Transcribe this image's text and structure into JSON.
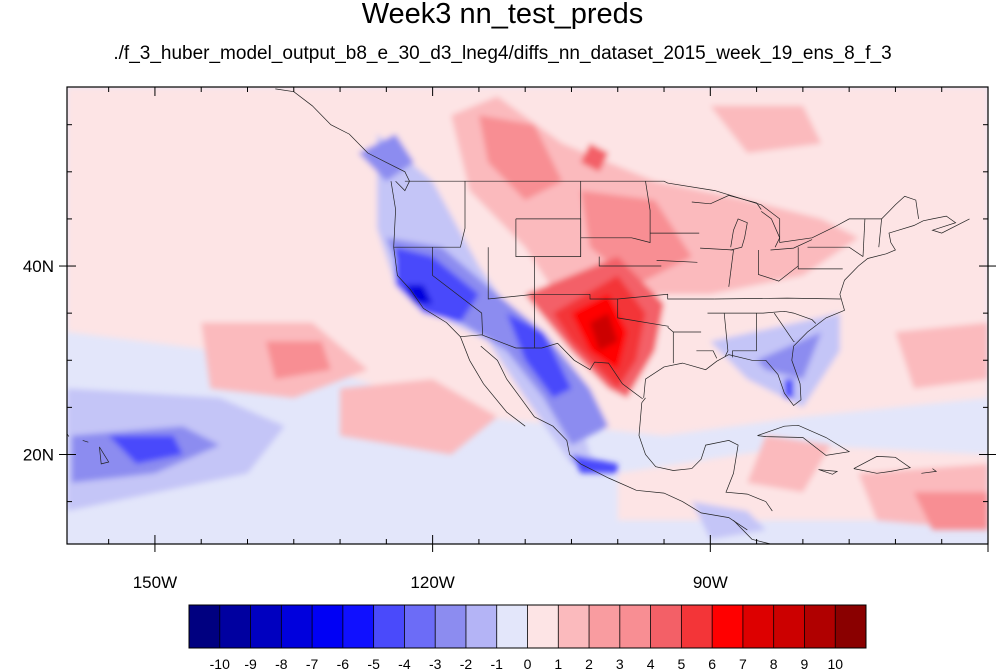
{
  "title": "Week3 nn_test_preds",
  "subtitle": "./f_3_huber_model_output_b8_e_30_d3_lneg4/diffs_nn_dataset_2015_week_19_ens_8_f_3",
  "map": {
    "projection": "cylindrical equidistant",
    "lon_range": [
      -159.5,
      -60
    ],
    "lat_range": [
      10.5,
      59
    ],
    "lon_labels": [
      {
        "lon": -150,
        "text": "150W"
      },
      {
        "lon": -120,
        "text": "120W"
      },
      {
        "lon": -90,
        "text": "90W"
      }
    ],
    "lat_labels": [
      {
        "lat": 40,
        "text": "40N"
      },
      {
        "lat": 20,
        "text": "20N"
      }
    ],
    "background_color": "#e3e6fa",
    "patches": [
      {
        "color": "#fde4e5",
        "pts": [
          [
            -159.5,
            59
          ],
          [
            -60,
            59
          ],
          [
            -60,
            26
          ],
          [
            -80,
            24
          ],
          [
            -95,
            22
          ],
          [
            -115,
            24
          ],
          [
            -135,
            30
          ],
          [
            -159.5,
            33
          ]
        ]
      },
      {
        "color": "#fde4e5",
        "pts": [
          [
            -100,
            13
          ],
          [
            -60,
            13
          ],
          [
            -60,
            20
          ],
          [
            -80,
            21
          ],
          [
            -100,
            18
          ]
        ]
      },
      {
        "color": "#fbbabd",
        "pts": [
          [
            -118,
            56
          ],
          [
            -113,
            58
          ],
          [
            -106,
            53
          ],
          [
            -96,
            49
          ],
          [
            -86,
            47
          ],
          [
            -78,
            45
          ],
          [
            -74,
            43
          ],
          [
            -80,
            39
          ],
          [
            -90,
            37
          ],
          [
            -97,
            37
          ],
          [
            -106,
            36
          ],
          [
            -110,
            42
          ],
          [
            -116,
            48
          ]
        ]
      },
      {
        "color": "#fbbabd",
        "pts": [
          [
            -90,
            57
          ],
          [
            -80,
            57
          ],
          [
            -78,
            53
          ],
          [
            -86,
            52
          ]
        ]
      },
      {
        "color": "#fbbabd",
        "pts": [
          [
            -145,
            34
          ],
          [
            -133,
            34
          ],
          [
            -127,
            29
          ],
          [
            -135,
            26
          ],
          [
            -144,
            27
          ]
        ]
      },
      {
        "color": "#fbbabd",
        "pts": [
          [
            -70,
            33
          ],
          [
            -60,
            34
          ],
          [
            -60,
            28
          ],
          [
            -68,
            27
          ]
        ]
      },
      {
        "color": "#fbbabd",
        "pts": [
          [
            -130,
            27
          ],
          [
            -120,
            28
          ],
          [
            -113,
            24
          ],
          [
            -118,
            20
          ],
          [
            -130,
            22
          ]
        ]
      },
      {
        "color": "#fbbabd",
        "pts": [
          [
            -74,
            18
          ],
          [
            -60,
            19
          ],
          [
            -60,
            12
          ],
          [
            -72,
            13
          ]
        ]
      },
      {
        "color": "#fbbabd",
        "pts": [
          [
            -84,
            22
          ],
          [
            -77,
            21
          ],
          [
            -80,
            16
          ],
          [
            -86,
            17
          ]
        ]
      },
      {
        "color": "#f88e93",
        "pts": [
          [
            -115,
            56
          ],
          [
            -109,
            55
          ],
          [
            -106,
            49
          ],
          [
            -110,
            47
          ],
          [
            -114,
            51
          ]
        ]
      },
      {
        "color": "#f88e93",
        "pts": [
          [
            -104,
            48
          ],
          [
            -96,
            47
          ],
          [
            -92,
            41
          ],
          [
            -98,
            38
          ],
          [
            -103,
            42
          ]
        ]
      },
      {
        "color": "#f88e93",
        "pts": [
          [
            -138,
            32
          ],
          [
            -132,
            32
          ],
          [
            -131,
            29
          ],
          [
            -137,
            28
          ]
        ]
      },
      {
        "color": "#f88e93",
        "pts": [
          [
            -68,
            16
          ],
          [
            -60,
            16
          ],
          [
            -60,
            12
          ],
          [
            -66,
            12
          ]
        ]
      },
      {
        "color": "#f36067",
        "pts": [
          [
            -110,
            37
          ],
          [
            -100,
            41
          ],
          [
            -95,
            36
          ],
          [
            -96,
            31
          ],
          [
            -99,
            26
          ],
          [
            -101,
            27
          ],
          [
            -105,
            31
          ]
        ]
      },
      {
        "color": "#f36067",
        "pts": [
          [
            -103,
            53
          ],
          [
            -101,
            52
          ],
          [
            -102,
            50
          ],
          [
            -104,
            51
          ]
        ]
      },
      {
        "color": "#f33538",
        "pts": [
          [
            -107,
            35
          ],
          [
            -100,
            39
          ],
          [
            -97,
            35
          ],
          [
            -98,
            30
          ],
          [
            -100,
            27
          ],
          [
            -102,
            29
          ],
          [
            -105,
            32
          ]
        ]
      },
      {
        "color": "#ff0000",
        "pts": [
          [
            -105,
            35
          ],
          [
            -101,
            37
          ],
          [
            -99,
            33
          ],
          [
            -100,
            29
          ],
          [
            -103,
            31
          ]
        ]
      },
      {
        "color": "#cc0000",
        "pts": [
          [
            -103,
            34
          ],
          [
            -101,
            35
          ],
          [
            -100,
            32
          ],
          [
            -102,
            31
          ]
        ]
      },
      {
        "color": "#c4c5f7",
        "pts": [
          [
            -159.5,
            27
          ],
          [
            -143,
            26
          ],
          [
            -136,
            23
          ],
          [
            -140,
            18
          ],
          [
            -159.5,
            14
          ]
        ]
      },
      {
        "color": "#c4c5f7",
        "pts": [
          [
            -126,
            54
          ],
          [
            -120,
            49
          ],
          [
            -115,
            40
          ],
          [
            -110,
            33
          ],
          [
            -105,
            27
          ],
          [
            -103,
            20
          ],
          [
            -100,
            18
          ],
          [
            -105,
            19
          ],
          [
            -110,
            26
          ],
          [
            -114,
            32
          ],
          [
            -118,
            34
          ],
          [
            -124,
            38
          ],
          [
            -126,
            44
          ]
        ]
      },
      {
        "color": "#c4c5f7",
        "pts": [
          [
            -90,
            32
          ],
          [
            -76,
            35
          ],
          [
            -76,
            31
          ],
          [
            -80,
            25
          ],
          [
            -86,
            28
          ]
        ]
      },
      {
        "color": "#c4c5f7",
        "pts": [
          [
            -92,
            15
          ],
          [
            -86,
            14
          ],
          [
            -84,
            12
          ],
          [
            -90,
            11
          ]
        ]
      },
      {
        "color": "#8c8cf0",
        "pts": [
          [
            -159,
            22
          ],
          [
            -147,
            23
          ],
          [
            -143,
            21
          ],
          [
            -150,
            18
          ],
          [
            -159,
            17
          ]
        ]
      },
      {
        "color": "#8c8cf0",
        "pts": [
          [
            -125,
            43
          ],
          [
            -119,
            42
          ],
          [
            -113,
            37
          ],
          [
            -108,
            33
          ],
          [
            -103,
            27
          ],
          [
            -101,
            23
          ],
          [
            -105,
            21
          ],
          [
            -108,
            26
          ],
          [
            -112,
            31
          ],
          [
            -117,
            34
          ],
          [
            -122,
            36
          ]
        ]
      },
      {
        "color": "#8c8cf0",
        "pts": [
          [
            -85,
            30
          ],
          [
            -78,
            33
          ],
          [
            -80,
            28
          ],
          [
            -84,
            29
          ]
        ]
      },
      {
        "color": "#8c8cf0",
        "pts": [
          [
            -128,
            52
          ],
          [
            -124,
            54
          ],
          [
            -122,
            51
          ],
          [
            -125,
            49
          ]
        ]
      },
      {
        "color": "#4a4afb",
        "pts": [
          [
            -124,
            42
          ],
          [
            -120,
            41
          ],
          [
            -115,
            37
          ],
          [
            -117,
            34
          ],
          [
            -121,
            35
          ],
          [
            -124,
            38
          ]
        ]
      },
      {
        "color": "#4a4afb",
        "pts": [
          [
            -112,
            35
          ],
          [
            -108,
            33
          ],
          [
            -105,
            27
          ],
          [
            -107,
            26
          ],
          [
            -110,
            30
          ]
        ]
      },
      {
        "color": "#4a4afb",
        "pts": [
          [
            -155,
            22
          ],
          [
            -148,
            22
          ],
          [
            -147,
            20
          ],
          [
            -152,
            19
          ]
        ]
      },
      {
        "color": "#4a4afb",
        "pts": [
          [
            -105,
            20
          ],
          [
            -100,
            19
          ],
          [
            -100,
            18
          ],
          [
            -104,
            18
          ]
        ]
      },
      {
        "color": "#4a4afb",
        "pts": [
          [
            -82,
            28
          ],
          [
            -81,
            28
          ],
          [
            -81,
            26
          ],
          [
            -82,
            26
          ]
        ]
      },
      {
        "color": "#0000dd",
        "pts": [
          [
            -123,
            38
          ],
          [
            -121,
            38
          ],
          [
            -120,
            36
          ],
          [
            -122,
            36
          ]
        ]
      }
    ],
    "coastline_color": "#222222"
  },
  "colorbar": {
    "colors": [
      "#000080",
      "#0000a0",
      "#0000c0",
      "#0000dd",
      "#0000f5",
      "#1010ff",
      "#4a4afb",
      "#6c6cf7",
      "#8c8cf0",
      "#b4b4f6",
      "#e3e6fa",
      "#fde4e5",
      "#fbbabd",
      "#f99ca0",
      "#f88e93",
      "#f36067",
      "#f33538",
      "#ff0000",
      "#dd0000",
      "#cc0000",
      "#b00000",
      "#8a0000"
    ],
    "labels": [
      "-10",
      "-9",
      "-8",
      "-7",
      "-6",
      "-5",
      "-4",
      "-3",
      "-2",
      "-1",
      "0",
      "1",
      "2",
      "3",
      "4",
      "5",
      "6",
      "7",
      "8",
      "9",
      "10"
    ]
  }
}
